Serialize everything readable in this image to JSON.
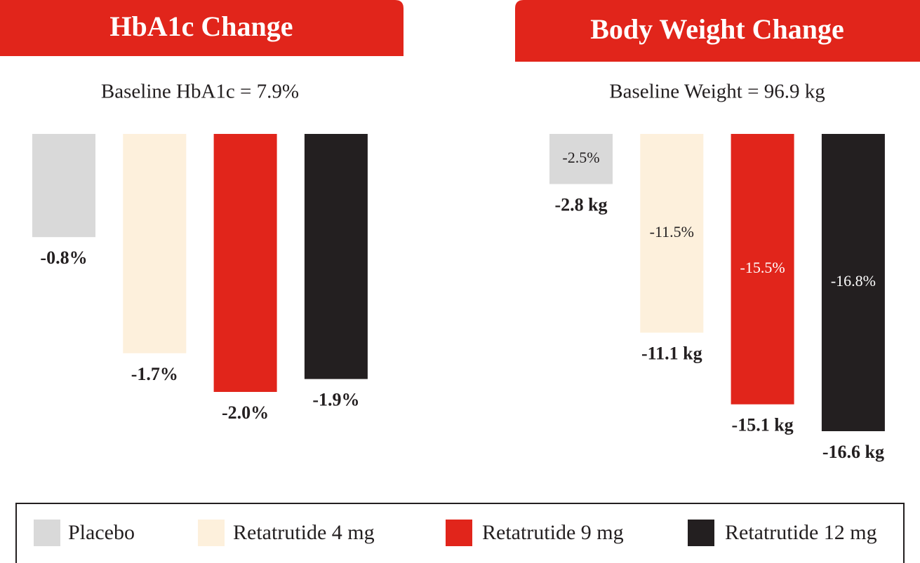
{
  "legend": [
    {
      "name": "Placebo",
      "color": "#d9d9d9"
    },
    {
      "name": "Retatrutide 4 mg",
      "color": "#fdf0dc"
    },
    {
      "name": "Retatrutide 9 mg",
      "color": "#e1251b"
    },
    {
      "name": "Retatrutide 12 mg",
      "color": "#231f20"
    }
  ],
  "chart_data": [
    {
      "type": "bar",
      "title": "HbA1c Change",
      "subtitle": "Baseline HbA1c = 7.9%",
      "values": [
        -0.8,
        -1.7,
        -2.0,
        -1.9
      ],
      "value_labels": [
        "-0.8%",
        "-1.7%",
        "-2.0%",
        "-1.9%"
      ]
    },
    {
      "type": "bar",
      "title": "Body Weight Change",
      "subtitle": "Baseline Weight = 96.9 kg",
      "values": [
        -2.8,
        -11.1,
        -15.1,
        -16.6
      ],
      "value_labels": [
        "-2.8 kg",
        "-11.1 kg",
        "-15.1 kg",
        "-16.6 kg"
      ],
      "inner_values": [
        -2.5,
        -11.5,
        -15.5,
        -16.8
      ],
      "inner_value_labels": [
        "-2.5%",
        "-11.5%",
        "-15.5%",
        "-16.8%"
      ]
    }
  ]
}
